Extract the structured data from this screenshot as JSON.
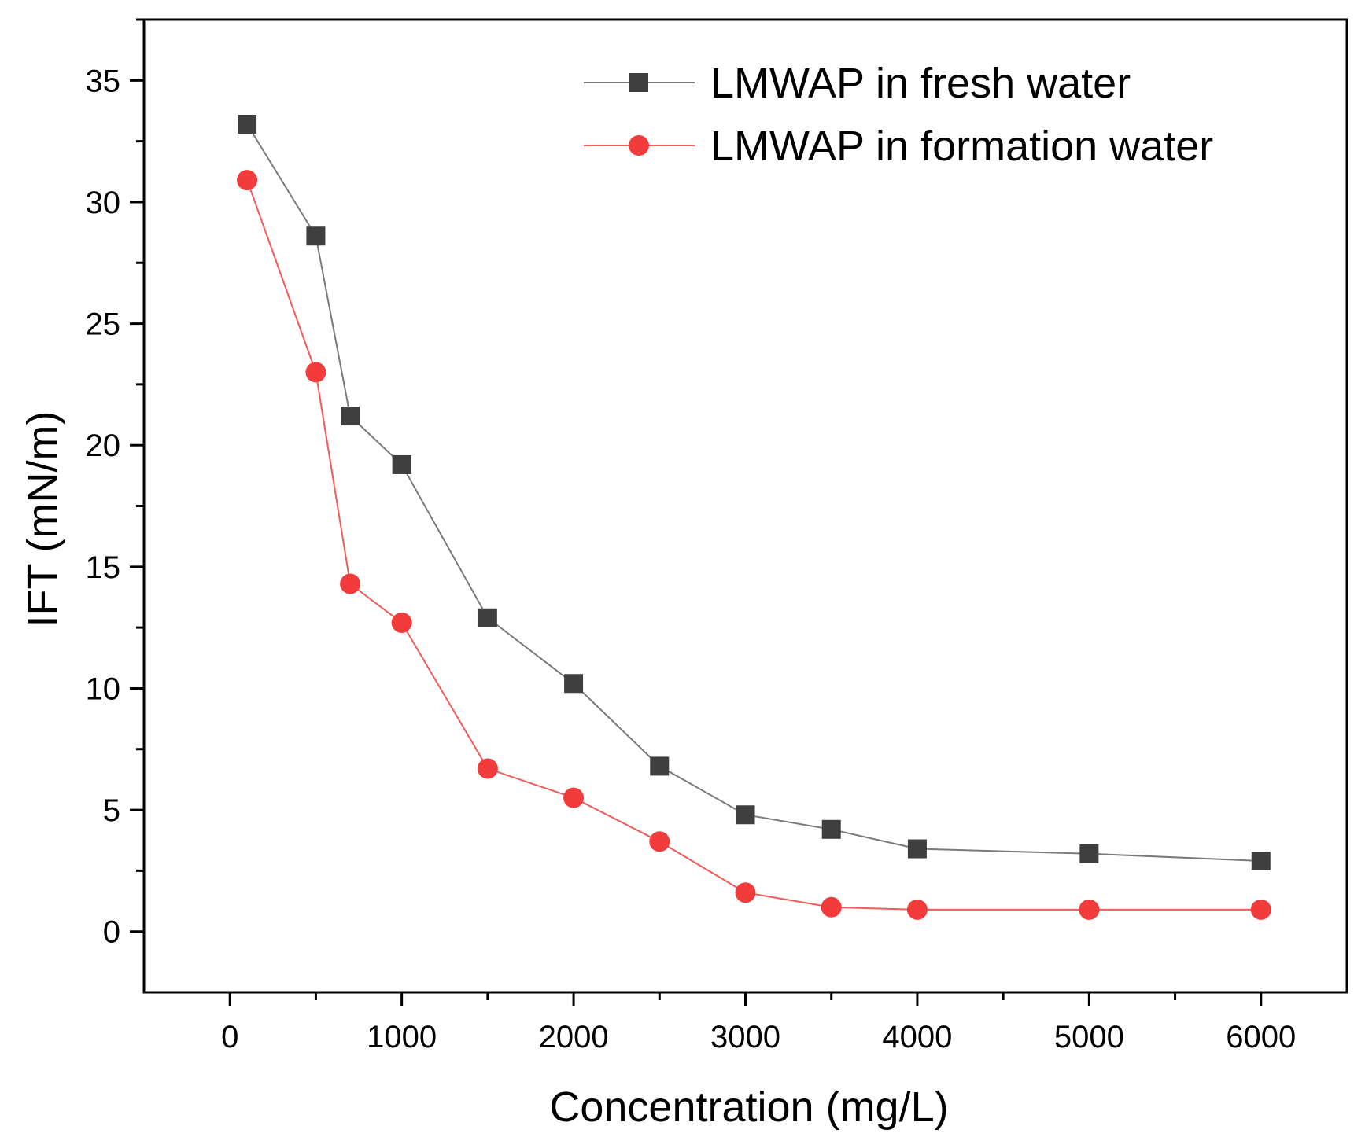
{
  "chart_data": {
    "type": "line",
    "title": "",
    "xlabel": "Concentration (mg/L)",
    "ylabel": "IFT (mN/m)",
    "xlim": [
      -500,
      6500
    ],
    "ylim": [
      -2.5,
      37.5
    ],
    "xticks": [
      0,
      1000,
      2000,
      3000,
      4000,
      5000,
      6000
    ],
    "yticks": [
      0,
      5,
      10,
      15,
      20,
      25,
      30,
      35
    ],
    "x_minor_step": 500,
    "y_minor_step": 2.5,
    "grid": false,
    "legend_position": "top-right",
    "x": [
      100,
      500,
      700,
      1000,
      1500,
      2000,
      2500,
      3000,
      3500,
      4000,
      5000,
      6000
    ],
    "series": [
      {
        "name": "LMWAP in fresh water",
        "marker": "square",
        "color": "#3f3f3f",
        "line_color": "#7a7a7a",
        "values": [
          33.2,
          28.6,
          21.2,
          19.2,
          12.9,
          10.2,
          6.8,
          4.8,
          4.2,
          3.4,
          3.2,
          2.9
        ]
      },
      {
        "name": "LMWAP in formation water",
        "marker": "circle",
        "color": "#f23b3b",
        "line_color": "#f25a5a",
        "values": [
          30.9,
          23.0,
          14.3,
          12.7,
          6.7,
          5.5,
          3.7,
          1.6,
          1.0,
          0.9,
          0.9,
          0.9
        ]
      }
    ]
  }
}
